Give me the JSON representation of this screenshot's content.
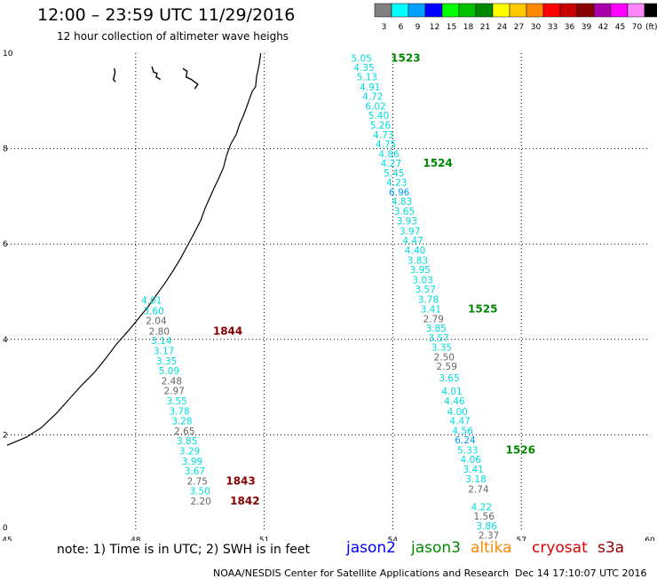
{
  "title": "12:00 – 23:59 UTC 11/29/2016",
  "subtitle": "12 hour collection of altimeter wave heighs",
  "legend": {
    "unit": "(ft)",
    "entries": [
      {
        "label": "3",
        "color": "#808080"
      },
      {
        "label": "6",
        "color": "#00ffff"
      },
      {
        "label": "9",
        "color": "#00a0ff"
      },
      {
        "label": "12",
        "color": "#0000ff"
      },
      {
        "label": "15",
        "color": "#00ff00"
      },
      {
        "label": "18",
        "color": "#00c000"
      },
      {
        "label": "21",
        "color": "#008800"
      },
      {
        "label": "24",
        "color": "#ffff00"
      },
      {
        "label": "27",
        "color": "#ffc800"
      },
      {
        "label": "30",
        "color": "#ff8800"
      },
      {
        "label": "33",
        "color": "#ff0000"
      },
      {
        "label": "36",
        "color": "#c80000"
      },
      {
        "label": "39",
        "color": "#880000"
      },
      {
        "label": "42",
        "color": "#aa00aa"
      },
      {
        "label": "45",
        "color": "#ff00ff"
      },
      {
        "label": "70",
        "color": "#ff88ff"
      },
      {
        "label": "",
        "color": "#000000"
      }
    ]
  },
  "map": {
    "lon_range": [
      45,
      60
    ],
    "lat_range": [
      0,
      10
    ],
    "x_ticks": [
      "45",
      "48",
      "51",
      "54",
      "57",
      "60"
    ],
    "y_ticks": [
      "0",
      "2",
      "4",
      "6",
      "8",
      "10"
    ]
  },
  "tracks": [
    {
      "name": "track-1523-1526",
      "color_hint": "jason3",
      "points": [
        {
          "lon": 53.27,
          "lat": 9.82,
          "v": "5.05",
          "c": "#00dddd"
        },
        {
          "lon": 53.33,
          "lat": 9.63,
          "v": "4.35",
          "c": "#00dddd"
        },
        {
          "lon": 53.4,
          "lat": 9.43,
          "v": "5.13",
          "c": "#00dddd"
        },
        {
          "lon": 53.47,
          "lat": 9.22,
          "v": "4.91",
          "c": "#00dddd"
        },
        {
          "lon": 53.53,
          "lat": 9.02,
          "v": "4.72",
          "c": "#00dddd"
        },
        {
          "lon": 53.6,
          "lat": 8.82,
          "v": "6.02",
          "c": "#00dddd"
        },
        {
          "lon": 53.67,
          "lat": 8.62,
          "v": "5.40",
          "c": "#00dddd"
        },
        {
          "lon": 53.71,
          "lat": 8.42,
          "v": "5.26",
          "c": "#00dddd"
        },
        {
          "lon": 53.78,
          "lat": 8.22,
          "v": "4.73",
          "c": "#00dddd"
        },
        {
          "lon": 53.84,
          "lat": 8.02,
          "v": "4.75",
          "c": "#00dddd"
        },
        {
          "lon": 53.91,
          "lat": 7.82,
          "v": "4.86",
          "c": "#00dddd"
        },
        {
          "lon": 53.96,
          "lat": 7.62,
          "v": "4.27",
          "c": "#00dddd"
        },
        {
          "lon": 54.03,
          "lat": 7.42,
          "v": "5.45",
          "c": "#00dddd"
        },
        {
          "lon": 54.09,
          "lat": 7.22,
          "v": "4.23",
          "c": "#00dddd"
        },
        {
          "lon": 54.15,
          "lat": 7.02,
          "v": "6.96",
          "c": "#00a0ff"
        },
        {
          "lon": 54.21,
          "lat": 6.82,
          "v": "4.83",
          "c": "#00dddd"
        },
        {
          "lon": 54.27,
          "lat": 6.62,
          "v": "3.65",
          "c": "#00dddd"
        },
        {
          "lon": 54.33,
          "lat": 6.41,
          "v": "3.93",
          "c": "#00dddd"
        },
        {
          "lon": 54.4,
          "lat": 6.2,
          "v": "3.97",
          "c": "#00dddd"
        },
        {
          "lon": 54.47,
          "lat": 6.0,
          "v": "4.47",
          "c": "#00dddd"
        },
        {
          "lon": 54.52,
          "lat": 5.8,
          "v": "4.40",
          "c": "#00dddd"
        },
        {
          "lon": 54.58,
          "lat": 5.59,
          "v": "3.83",
          "c": "#00dddd"
        },
        {
          "lon": 54.64,
          "lat": 5.39,
          "v": "3.95",
          "c": "#00dddd"
        },
        {
          "lon": 54.7,
          "lat": 5.18,
          "v": "3.03",
          "c": "#00dddd"
        },
        {
          "lon": 54.76,
          "lat": 4.98,
          "v": "3.57",
          "c": "#00dddd"
        },
        {
          "lon": 54.83,
          "lat": 4.77,
          "v": "3.78",
          "c": "#00dddd"
        },
        {
          "lon": 54.89,
          "lat": 4.56,
          "v": "3.41",
          "c": "#00dddd"
        },
        {
          "lon": 54.95,
          "lat": 4.36,
          "v": "2.79",
          "c": "#666666"
        },
        {
          "lon": 55.01,
          "lat": 4.16,
          "v": "3.85",
          "c": "#00dddd"
        },
        {
          "lon": 55.07,
          "lat": 3.96,
          "v": "3.57",
          "c": "#00dddd"
        },
        {
          "lon": 55.14,
          "lat": 3.76,
          "v": "3.35",
          "c": "#00dddd"
        },
        {
          "lon": 55.2,
          "lat": 3.56,
          "v": "2.50",
          "c": "#666666"
        },
        {
          "lon": 55.26,
          "lat": 3.36,
          "v": "2.59",
          "c": "#666666"
        },
        {
          "lon": 55.32,
          "lat": 3.12,
          "v": "3.65",
          "c": "#00dddd"
        },
        {
          "lon": 55.38,
          "lat": 2.84,
          "v": "4.01",
          "c": "#00dddd"
        },
        {
          "lon": 55.44,
          "lat": 2.64,
          "v": "4.46",
          "c": "#00dddd"
        },
        {
          "lon": 55.51,
          "lat": 2.42,
          "v": "4.00",
          "c": "#00dddd"
        },
        {
          "lon": 55.57,
          "lat": 2.22,
          "v": "4.47",
          "c": "#00dddd"
        },
        {
          "lon": 55.63,
          "lat": 2.02,
          "v": "4.56",
          "c": "#00dddd"
        },
        {
          "lon": 55.69,
          "lat": 1.82,
          "v": "6.24",
          "c": "#00a0ff"
        },
        {
          "lon": 55.75,
          "lat": 1.61,
          "v": "5.33",
          "c": "#00dddd"
        },
        {
          "lon": 55.82,
          "lat": 1.41,
          "v": "4.06",
          "c": "#00dddd"
        },
        {
          "lon": 55.88,
          "lat": 1.21,
          "v": "3.41",
          "c": "#00dddd"
        },
        {
          "lon": 55.94,
          "lat": 1.0,
          "v": "3.18",
          "c": "#00dddd"
        },
        {
          "lon": 56.0,
          "lat": 0.79,
          "v": "2.74",
          "c": "#666666"
        },
        {
          "lon": 56.07,
          "lat": 0.42,
          "v": "4.22",
          "c": "#00dddd"
        },
        {
          "lon": 56.13,
          "lat": 0.22,
          "v": "1.56",
          "c": "#666666"
        },
        {
          "lon": 56.19,
          "lat": 0.02,
          "v": "3.86",
          "c": "#00dddd"
        },
        {
          "lon": 56.24,
          "lat": -0.18,
          "v": "2.37",
          "c": "#666666"
        }
      ],
      "time_labels": [
        {
          "lon": 54.3,
          "lat": 9.82,
          "t": "1523",
          "c": "#008800"
        },
        {
          "lon": 55.05,
          "lat": 7.62,
          "t": "1524",
          "c": "#008800"
        },
        {
          "lon": 56.1,
          "lat": 4.56,
          "t": "1525",
          "c": "#008800"
        },
        {
          "lon": 56.98,
          "lat": 1.61,
          "t": "1526",
          "c": "#008800"
        }
      ]
    },
    {
      "name": "track-1842-1844",
      "color_hint": "cryosat",
      "points": [
        {
          "lon": 48.37,
          "lat": 4.75,
          "v": "4.01",
          "c": "#00dddd"
        },
        {
          "lon": 48.42,
          "lat": 4.53,
          "v": "3.60",
          "c": "#00dddd"
        },
        {
          "lon": 48.48,
          "lat": 4.32,
          "v": "2.04",
          "c": "#666666"
        },
        {
          "lon": 48.55,
          "lat": 4.1,
          "v": "2.80",
          "c": "#666666"
        },
        {
          "lon": 48.6,
          "lat": 3.9,
          "v": "3.14",
          "c": "#00dddd"
        },
        {
          "lon": 48.66,
          "lat": 3.69,
          "v": "3.17",
          "c": "#00dddd"
        },
        {
          "lon": 48.72,
          "lat": 3.48,
          "v": "3.35",
          "c": "#00dddd"
        },
        {
          "lon": 48.78,
          "lat": 3.27,
          "v": "5.09",
          "c": "#00dddd"
        },
        {
          "lon": 48.84,
          "lat": 3.06,
          "v": "2.48",
          "c": "#666666"
        },
        {
          "lon": 48.9,
          "lat": 2.85,
          "v": "2.97",
          "c": "#666666"
        },
        {
          "lon": 48.96,
          "lat": 2.64,
          "v": "3.55",
          "c": "#00dddd"
        },
        {
          "lon": 49.02,
          "lat": 2.43,
          "v": "3.78",
          "c": "#00dddd"
        },
        {
          "lon": 49.08,
          "lat": 2.22,
          "v": "3.28",
          "c": "#00dddd"
        },
        {
          "lon": 49.14,
          "lat": 2.01,
          "v": "2.65",
          "c": "#666666"
        },
        {
          "lon": 49.2,
          "lat": 1.8,
          "v": "3.85",
          "c": "#00dddd"
        },
        {
          "lon": 49.26,
          "lat": 1.59,
          "v": "3.29",
          "c": "#00dddd"
        },
        {
          "lon": 49.32,
          "lat": 1.38,
          "v": "3.99",
          "c": "#00dddd"
        },
        {
          "lon": 49.38,
          "lat": 1.17,
          "v": "3.67",
          "c": "#00dddd"
        },
        {
          "lon": 49.44,
          "lat": 0.96,
          "v": "2.75",
          "c": "#666666"
        },
        {
          "lon": 49.5,
          "lat": 0.75,
          "v": "3.50",
          "c": "#00dddd"
        },
        {
          "lon": 49.52,
          "lat": 0.54,
          "v": "2.20",
          "c": "#666666"
        }
      ],
      "time_labels": [
        {
          "lon": 50.15,
          "lat": 4.1,
          "t": "1844",
          "c": "#880000"
        },
        {
          "lon": 50.45,
          "lat": 0.96,
          "t": "1843",
          "c": "#880000"
        },
        {
          "lon": 50.55,
          "lat": 0.54,
          "t": "1842",
          "c": "#880000"
        }
      ]
    }
  ],
  "footer": {
    "note": "note: 1) Time is in UTC; 2) SWH is in feet",
    "center": "NOAA/NESDIS Center for Satellite Applications and Research",
    "timestamp": "Dec 14 17:10:07 UTC 2016"
  },
  "satellites": [
    {
      "name": "jason2",
      "color": "#0000ff"
    },
    {
      "name": "jason3",
      "color": "#008800"
    },
    {
      "name": "altika",
      "color": "#ff8800"
    },
    {
      "name": "cryosat",
      "color": "#dd0000"
    },
    {
      "name": "s3a",
      "color": "#880000"
    }
  ]
}
